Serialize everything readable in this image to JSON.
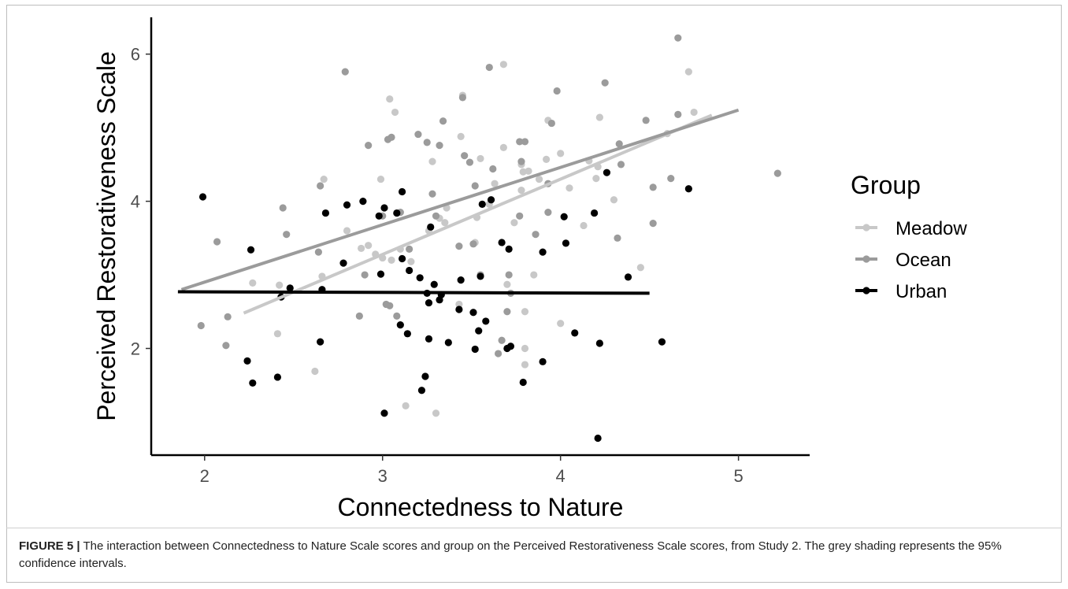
{
  "figure": {
    "caption_label": "FIGURE 5 |",
    "caption_text": " The interaction between Connectedness to Nature Scale scores and group on the Perceived Restorativeness Scale scores, from Study 2. The grey shading represents the 95% confidence intervals."
  },
  "chart_data": {
    "type": "scatter",
    "xlabel": "Connectedness to Nature",
    "ylabel": "Perceived Restorativeness Scale",
    "xlim": [
      1.7,
      5.4
    ],
    "ylim": [
      0.55,
      6.5
    ],
    "x_ticks": [
      2,
      3,
      4,
      5
    ],
    "y_ticks": [
      2,
      4,
      6
    ],
    "grid": false,
    "legend": {
      "title": "Group",
      "placement": "right"
    },
    "series": [
      {
        "name": "Meadow",
        "color": "#c8c8c8",
        "fit_line": {
          "x": [
            2.22,
            4.85
          ],
          "y": [
            2.48,
            5.17
          ]
        },
        "points": [
          [
            2.27,
            2.89
          ],
          [
            2.42,
            2.86
          ],
          [
            2.41,
            2.2
          ],
          [
            2.62,
            1.69
          ],
          [
            2.66,
            2.98
          ],
          [
            2.67,
            4.3
          ],
          [
            2.8,
            3.6
          ],
          [
            2.88,
            3.36
          ],
          [
            2.92,
            3.4
          ],
          [
            2.96,
            3.28
          ],
          [
            2.99,
            4.3
          ],
          [
            3.0,
            3.23
          ],
          [
            3.04,
            5.39
          ],
          [
            3.07,
            5.21
          ],
          [
            3.05,
            3.2
          ],
          [
            3.1,
            3.35
          ],
          [
            3.13,
            1.22
          ],
          [
            3.16,
            3.18
          ],
          [
            3.28,
            4.54
          ],
          [
            3.3,
            1.12
          ],
          [
            3.32,
            3.77
          ],
          [
            3.35,
            3.71
          ],
          [
            3.43,
            2.6
          ],
          [
            3.44,
            4.88
          ],
          [
            3.45,
            5.44
          ],
          [
            3.52,
            3.44
          ],
          [
            3.53,
            3.78
          ],
          [
            3.55,
            4.58
          ],
          [
            3.6,
            3.96
          ],
          [
            3.63,
            4.24
          ],
          [
            3.68,
            5.86
          ],
          [
            3.68,
            4.73
          ],
          [
            3.7,
            2.87
          ],
          [
            3.74,
            3.71
          ],
          [
            3.78,
            4.5
          ],
          [
            3.78,
            4.15
          ],
          [
            3.79,
            4.4
          ],
          [
            3.8,
            2.5
          ],
          [
            3.8,
            2.0
          ],
          [
            3.8,
            1.78
          ],
          [
            3.82,
            4.41
          ],
          [
            3.85,
            3.0
          ],
          [
            3.88,
            4.3
          ],
          [
            3.92,
            4.57
          ],
          [
            3.93,
            5.1
          ],
          [
            4.0,
            4.65
          ],
          [
            4.0,
            2.34
          ],
          [
            4.05,
            4.18
          ],
          [
            4.13,
            3.67
          ],
          [
            4.16,
            4.55
          ],
          [
            4.2,
            4.31
          ],
          [
            4.21,
            4.47
          ],
          [
            4.22,
            5.14
          ],
          [
            4.3,
            4.02
          ],
          [
            4.45,
            3.1
          ],
          [
            4.6,
            4.92
          ],
          [
            4.72,
            5.76
          ],
          [
            4.75,
            5.21
          ],
          [
            3.36,
            3.91
          ],
          [
            3.26,
            3.6
          ]
        ]
      },
      {
        "name": "Ocean",
        "color": "#9b9b9b",
        "fit_line": {
          "x": [
            1.87,
            5.0
          ],
          "y": [
            2.8,
            5.24
          ]
        },
        "points": [
          [
            1.98,
            2.31
          ],
          [
            2.07,
            3.45
          ],
          [
            2.12,
            2.04
          ],
          [
            2.13,
            2.43
          ],
          [
            2.44,
            3.91
          ],
          [
            2.46,
            3.55
          ],
          [
            2.64,
            3.31
          ],
          [
            2.65,
            4.21
          ],
          [
            2.79,
            5.76
          ],
          [
            2.87,
            2.44
          ],
          [
            2.9,
            3.0
          ],
          [
            2.92,
            4.76
          ],
          [
            3.0,
            3.8
          ],
          [
            3.02,
            2.6
          ],
          [
            3.03,
            4.84
          ],
          [
            3.04,
            2.58
          ],
          [
            3.05,
            4.87
          ],
          [
            3.08,
            2.44
          ],
          [
            3.1,
            3.85
          ],
          [
            3.15,
            3.35
          ],
          [
            3.2,
            4.91
          ],
          [
            3.25,
            4.8
          ],
          [
            3.3,
            3.8
          ],
          [
            3.32,
            4.76
          ],
          [
            3.34,
            5.09
          ],
          [
            3.43,
            3.39
          ],
          [
            3.45,
            5.41
          ],
          [
            3.46,
            4.62
          ],
          [
            3.49,
            4.53
          ],
          [
            3.51,
            3.42
          ],
          [
            3.52,
            4.21
          ],
          [
            3.6,
            5.82
          ],
          [
            3.62,
            4.44
          ],
          [
            3.65,
            1.93
          ],
          [
            3.67,
            2.11
          ],
          [
            3.7,
            2.5
          ],
          [
            3.71,
            3.0
          ],
          [
            3.72,
            2.75
          ],
          [
            3.77,
            3.8
          ],
          [
            3.77,
            4.81
          ],
          [
            3.78,
            4.54
          ],
          [
            3.8,
            4.81
          ],
          [
            3.86,
            3.55
          ],
          [
            3.93,
            4.24
          ],
          [
            3.93,
            3.85
          ],
          [
            3.95,
            5.06
          ],
          [
            3.98,
            5.5
          ],
          [
            4.25,
            5.61
          ],
          [
            4.32,
            3.5
          ],
          [
            4.33,
            4.78
          ],
          [
            4.34,
            4.5
          ],
          [
            4.48,
            5.1
          ],
          [
            4.52,
            4.19
          ],
          [
            4.52,
            3.7
          ],
          [
            4.62,
            4.31
          ],
          [
            4.66,
            5.18
          ],
          [
            4.66,
            6.22
          ],
          [
            5.22,
            4.38
          ],
          [
            3.55,
            3.0
          ],
          [
            3.28,
            4.1
          ]
        ]
      },
      {
        "name": "Urban",
        "color": "#000000",
        "fit_line": {
          "x": [
            1.85,
            4.5
          ],
          "y": [
            2.77,
            2.75
          ]
        },
        "points": [
          [
            1.99,
            4.06
          ],
          [
            2.24,
            1.83
          ],
          [
            2.26,
            3.34
          ],
          [
            2.27,
            1.53
          ],
          [
            2.41,
            1.61
          ],
          [
            2.43,
            2.7
          ],
          [
            2.48,
            2.82
          ],
          [
            2.65,
            2.09
          ],
          [
            2.66,
            2.8
          ],
          [
            2.68,
            3.84
          ],
          [
            2.78,
            3.16
          ],
          [
            2.8,
            3.95
          ],
          [
            2.89,
            4.0
          ],
          [
            2.98,
            3.8
          ],
          [
            2.99,
            3.01
          ],
          [
            3.01,
            3.91
          ],
          [
            3.01,
            1.12
          ],
          [
            3.08,
            3.84
          ],
          [
            3.1,
            2.32
          ],
          [
            3.11,
            3.22
          ],
          [
            3.11,
            4.13
          ],
          [
            3.14,
            2.2
          ],
          [
            3.15,
            3.06
          ],
          [
            3.21,
            2.96
          ],
          [
            3.22,
            1.43
          ],
          [
            3.24,
            1.62
          ],
          [
            3.25,
            2.75
          ],
          [
            3.26,
            2.13
          ],
          [
            3.26,
            2.62
          ],
          [
            3.27,
            3.65
          ],
          [
            3.29,
            2.87
          ],
          [
            3.32,
            2.66
          ],
          [
            3.33,
            2.73
          ],
          [
            3.37,
            2.08
          ],
          [
            3.43,
            2.53
          ],
          [
            3.44,
            2.93
          ],
          [
            3.51,
            2.49
          ],
          [
            3.52,
            1.99
          ],
          [
            3.54,
            2.24
          ],
          [
            3.55,
            2.98
          ],
          [
            3.56,
            3.96
          ],
          [
            3.58,
            2.37
          ],
          [
            3.61,
            4.02
          ],
          [
            3.67,
            3.44
          ],
          [
            3.7,
            2.0
          ],
          [
            3.71,
            3.35
          ],
          [
            3.72,
            2.03
          ],
          [
            3.79,
            1.54
          ],
          [
            3.9,
            3.31
          ],
          [
            3.9,
            1.82
          ],
          [
            4.02,
            3.79
          ],
          [
            4.03,
            3.43
          ],
          [
            4.08,
            2.21
          ],
          [
            4.19,
            3.84
          ],
          [
            4.21,
            0.78
          ],
          [
            4.22,
            2.07
          ],
          [
            4.26,
            4.39
          ],
          [
            4.38,
            2.97
          ],
          [
            4.57,
            2.09
          ],
          [
            4.72,
            4.17
          ]
        ]
      }
    ]
  }
}
